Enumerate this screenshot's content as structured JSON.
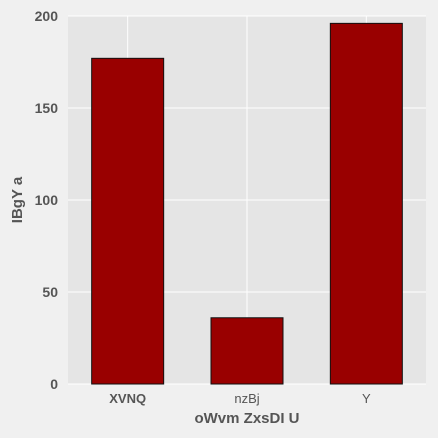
{
  "chart_data": {
    "type": "bar",
    "title": "",
    "xlabel": "oWvm ZxsDI U",
    "ylabel": "IBgY a",
    "categories": [
      "XVNQ",
      "nzBj",
      "Y"
    ],
    "category_bold": [
      true,
      false,
      false
    ],
    "values": [
      177,
      36,
      196
    ],
    "ylim": [
      0,
      200
    ],
    "yticks": [
      0,
      50,
      100,
      150,
      200
    ],
    "grid": true,
    "legend": "none",
    "colors": {
      "bar": "#990000",
      "bar_edge": "#111111",
      "plot_background": "#e5e5e5",
      "figure_background": "#f0f0f0",
      "grid": "#ffffff"
    }
  }
}
